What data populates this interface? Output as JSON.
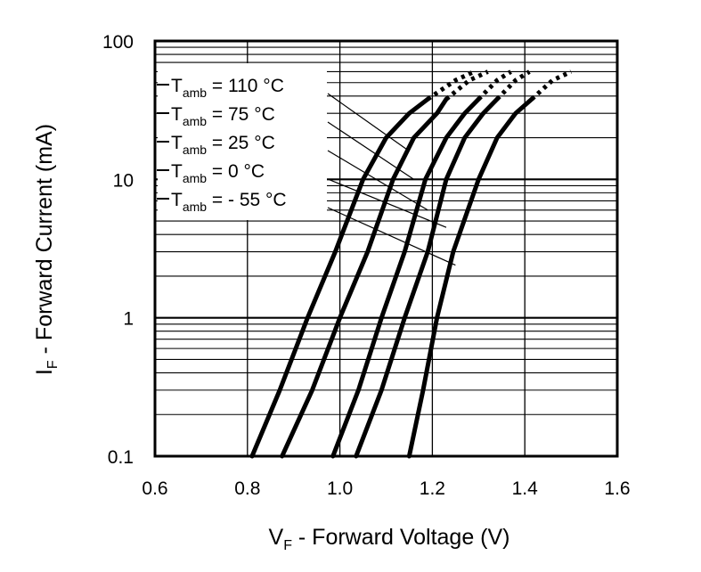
{
  "chart_data": {
    "type": "line",
    "title": "",
    "xlabel": {
      "main": "V",
      "sub": "F",
      "rest": " - Forward Voltage (V)"
    },
    "ylabel": {
      "main": "I",
      "sub": "F",
      "rest": " - Forward Current (mA)"
    },
    "x_scale": "linear",
    "y_scale": "log",
    "xlim": [
      0.6,
      1.6
    ],
    "ylim": [
      0.1,
      100
    ],
    "x_ticks": [
      {
        "value": 0.6,
        "label": "0.6"
      },
      {
        "value": 0.8,
        "label": "0.8"
      },
      {
        "value": 1.0,
        "label": "1.0"
      },
      {
        "value": 1.2,
        "label": "1.2"
      },
      {
        "value": 1.4,
        "label": "1.4"
      },
      {
        "value": 1.6,
        "label": "1.6"
      }
    ],
    "y_ticks": [
      {
        "value": 0.1,
        "label": "0.1"
      },
      {
        "value": 1,
        "label": "1"
      },
      {
        "value": 10,
        "label": "10"
      },
      {
        "value": 100,
        "label": "100"
      }
    ],
    "grid": true,
    "line_color": "#000000",
    "legend": {
      "placement": "top-left",
      "entries": [
        {
          "main": "T",
          "sub": "amb",
          "rest": " = 110 °C"
        },
        {
          "main": "T",
          "sub": "amb",
          "rest": " = 75 °C"
        },
        {
          "main": "T",
          "sub": "amb",
          "rest": " = 25 °C"
        },
        {
          "main": "T",
          "sub": "amb",
          "rest": " = 0 °C"
        },
        {
          "main": "T",
          "sub": "amb",
          "rest": " = - 55 °C"
        }
      ]
    },
    "series": [
      {
        "solid": [
          [
            0.81,
            0.1
          ],
          [
            0.87,
            0.3
          ],
          [
            0.93,
            1
          ],
          [
            0.99,
            3
          ],
          [
            1.05,
            10
          ],
          [
            1.1,
            20
          ],
          [
            1.15,
            30
          ],
          [
            1.19,
            38
          ]
        ],
        "dotted": [
          [
            1.19,
            38
          ],
          [
            1.25,
            52
          ],
          [
            1.29,
            60
          ]
        ]
      },
      {
        "solid": [
          [
            0.875,
            0.1
          ],
          [
            0.94,
            0.3
          ],
          [
            1.0,
            1
          ],
          [
            1.06,
            3
          ],
          [
            1.115,
            10
          ],
          [
            1.16,
            20
          ],
          [
            1.21,
            30
          ],
          [
            1.23,
            38
          ]
        ],
        "dotted": [
          [
            1.23,
            38
          ],
          [
            1.28,
            52
          ],
          [
            1.32,
            60
          ]
        ]
      },
      {
        "solid": [
          [
            0.985,
            0.1
          ],
          [
            1.04,
            0.3
          ],
          [
            1.09,
            1
          ],
          [
            1.14,
            3
          ],
          [
            1.185,
            10
          ],
          [
            1.23,
            20
          ],
          [
            1.27,
            30
          ],
          [
            1.3,
            38
          ]
        ],
        "dotted": [
          [
            1.3,
            38
          ],
          [
            1.34,
            52
          ],
          [
            1.37,
            60
          ]
        ]
      },
      {
        "solid": [
          [
            1.035,
            0.1
          ],
          [
            1.09,
            0.3
          ],
          [
            1.14,
            1
          ],
          [
            1.19,
            3
          ],
          [
            1.23,
            10
          ],
          [
            1.27,
            20
          ],
          [
            1.31,
            30
          ],
          [
            1.34,
            38
          ]
        ],
        "dotted": [
          [
            1.34,
            38
          ],
          [
            1.38,
            52
          ],
          [
            1.41,
            60
          ]
        ]
      },
      {
        "solid": [
          [
            1.15,
            0.1
          ],
          [
            1.18,
            0.3
          ],
          [
            1.21,
            1
          ],
          [
            1.245,
            3
          ],
          [
            1.3,
            10
          ],
          [
            1.34,
            20
          ],
          [
            1.38,
            30
          ],
          [
            1.415,
            38
          ]
        ],
        "dotted": [
          [
            1.415,
            38
          ],
          [
            1.46,
            52
          ],
          [
            1.5,
            60
          ]
        ]
      }
    ],
    "leader_targets": [
      [
        1.15,
        16
      ],
      [
        1.16,
        10
      ],
      [
        1.19,
        6
      ],
      [
        1.23,
        4.5
      ],
      [
        1.25,
        2.4
      ]
    ]
  }
}
